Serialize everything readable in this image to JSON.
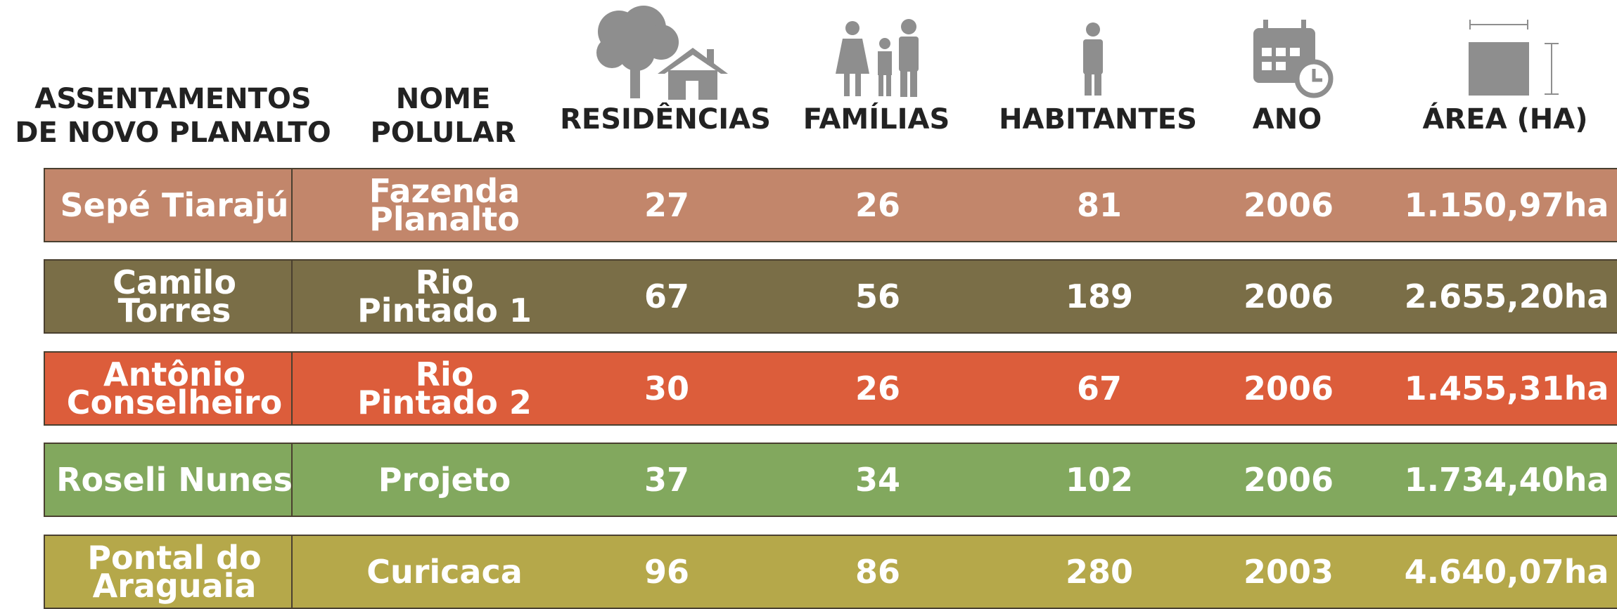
{
  "table": {
    "header": [
      [
        "ASSENTAMENTOS",
        "DE NOVO PLANALTO"
      ],
      [
        "NOME",
        "POLULAR"
      ],
      [
        "RESIDÊNCIAS"
      ],
      [
        "FAMÍLIAS"
      ],
      [
        "HABITANTES"
      ],
      [
        "ANO"
      ],
      [
        "ÁREA (HA)"
      ]
    ],
    "icon_label": "m2",
    "rows": [
      {
        "color": "#c2866b",
        "cells": [
          [
            "Sepé Tiarajú"
          ],
          [
            "Fazenda",
            "Planalto"
          ],
          [
            27
          ],
          [
            26
          ],
          [
            81
          ],
          [
            2006
          ],
          [
            "1.150,97ha"
          ]
        ]
      },
      {
        "color": "#7a6e47",
        "cells": [
          [
            "Camilo",
            "Torres"
          ],
          [
            "Rio",
            "Pintado 1"
          ],
          [
            67
          ],
          [
            56
          ],
          [
            189
          ],
          [
            2006
          ],
          [
            "2.655,20ha"
          ]
        ]
      },
      {
        "color": "#dc5d3b",
        "cells": [
          [
            "Antônio",
            "Conselheiro"
          ],
          [
            "Rio",
            "Pintado 2"
          ],
          [
            30
          ],
          [
            26
          ],
          [
            67
          ],
          [
            2006
          ],
          [
            "1.455,31ha"
          ]
        ]
      },
      {
        "color": "#82a85e",
        "cells": [
          [
            "Roseli Nunes"
          ],
          [
            "Projeto"
          ],
          [
            37
          ],
          [
            34
          ],
          [
            102
          ],
          [
            2006
          ],
          [
            "1.734,40ha"
          ]
        ]
      },
      {
        "color": "#b5a84a",
        "cells": [
          [
            "Pontal do",
            "Araguaia"
          ],
          [
            "Curicaca"
          ],
          [
            96
          ],
          [
            86
          ],
          [
            280
          ],
          [
            2003
          ],
          [
            "4.640,07ha"
          ]
        ]
      }
    ]
  }
}
